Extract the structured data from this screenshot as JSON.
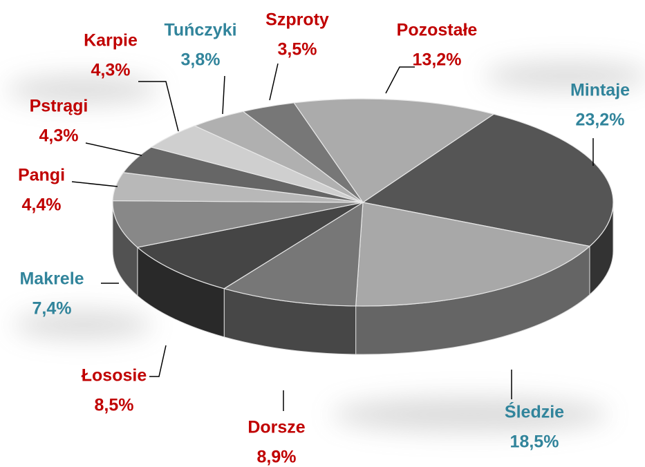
{
  "chart_data": {
    "type": "pie3d",
    "categories": [
      "Mintaje",
      "Śledzie",
      "Dorsze",
      "Łososie",
      "Makrele",
      "Pangi",
      "Pstrągi",
      "Karpie",
      "Tuńczyki",
      "Szproty",
      "Pozostałe"
    ],
    "values": [
      23.2,
      18.5,
      8.9,
      8.5,
      7.4,
      4.4,
      4.3,
      4.3,
      3.8,
      3.5,
      13.2
    ],
    "value_labels": [
      "23,2%",
      "18,5%",
      "8,9%",
      "8,5%",
      "7,4%",
      "4,4%",
      "4,3%",
      "4,3%",
      "3,8%",
      "3,5%",
      "13,2%"
    ],
    "colors": [
      "#555555",
      "#a8a8a8",
      "#777777",
      "#454545",
      "#888888",
      "#b8b8b8",
      "#666666",
      "#cfcfcf",
      "#b0b0b0",
      "#777777",
      "#ababab"
    ],
    "label_colors": [
      "#31849b",
      "#31849b",
      "#c00000",
      "#c00000",
      "#31849b",
      "#c00000",
      "#c00000",
      "#c00000",
      "#31849b",
      "#c00000",
      "#c00000"
    ]
  }
}
